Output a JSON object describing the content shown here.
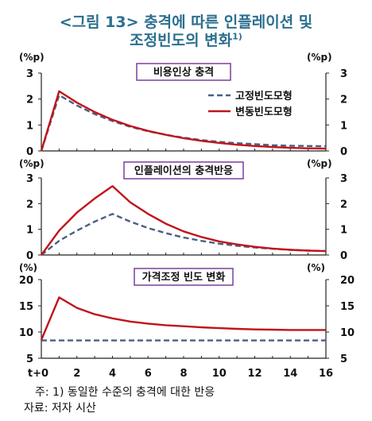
{
  "title": {
    "line1": "<그림 13> 충격에 따른 인플레이션 및",
    "line2": "조정빈도의 변화",
    "line2_sup": "1)"
  },
  "footnote": "주: 1) 동일한 수준의 충격에 대한 반응",
  "source": "자료: 저자 시산",
  "colors": {
    "fixed": "#4a5f80",
    "variable": "#c0141b",
    "panel_border": "#7b3f9e",
    "title": "#2c6f8f"
  },
  "chart_data": [
    {
      "type": "line",
      "title": "비용인상 충격",
      "ylabel_left": "(%p)",
      "ylabel_right": "(%p)",
      "ylim": [
        0,
        3
      ],
      "yticks": [
        "0",
        "1",
        "2",
        "3"
      ],
      "x": [
        0,
        1,
        2,
        3,
        4,
        5,
        6,
        7,
        8,
        9,
        10,
        11,
        12,
        13,
        14,
        15,
        16
      ],
      "legend": "top-right",
      "series": [
        {
          "name": "고정빈도모형",
          "style": "dashed",
          "values": [
            0,
            2.15,
            1.75,
            1.42,
            1.15,
            0.93,
            0.76,
            0.62,
            0.51,
            0.42,
            0.35,
            0.3,
            0.26,
            0.22,
            0.2,
            0.19,
            0.18
          ]
        },
        {
          "name": "변동빈도모형",
          "style": "solid",
          "values": [
            0,
            2.3,
            1.86,
            1.5,
            1.2,
            0.96,
            0.77,
            0.62,
            0.49,
            0.39,
            0.31,
            0.24,
            0.19,
            0.15,
            0.12,
            0.1,
            0.09
          ]
        }
      ]
    },
    {
      "type": "line",
      "title": "인플레이션의 충격반응",
      "ylabel_left": "(%p)",
      "ylabel_right": "(%p)",
      "ylim": [
        0,
        3
      ],
      "yticks": [
        "0",
        "1",
        "2",
        "3"
      ],
      "x": [
        0,
        1,
        2,
        3,
        4,
        5,
        6,
        7,
        8,
        9,
        10,
        11,
        12,
        13,
        14,
        15,
        16
      ],
      "series": [
        {
          "name": "고정빈도모형",
          "style": "dashed",
          "values": [
            0,
            0.55,
            0.95,
            1.3,
            1.6,
            1.3,
            1.05,
            0.85,
            0.68,
            0.55,
            0.44,
            0.36,
            0.29,
            0.24,
            0.2,
            0.17,
            0.15
          ]
        },
        {
          "name": "변동빈도모형",
          "style": "solid",
          "values": [
            0,
            0.95,
            1.65,
            2.2,
            2.68,
            2.05,
            1.6,
            1.22,
            0.92,
            0.7,
            0.53,
            0.41,
            0.32,
            0.25,
            0.2,
            0.17,
            0.15
          ]
        }
      ]
    },
    {
      "type": "line",
      "title": "가격조정 빈도 변화",
      "ylabel_left": "(%)",
      "ylabel_right": "(%)",
      "ylim": [
        5,
        20
      ],
      "yticks": [
        "5",
        "10",
        "15",
        "20"
      ],
      "x": [
        0,
        1,
        2,
        3,
        4,
        5,
        6,
        7,
        8,
        9,
        10,
        11,
        12,
        13,
        14,
        15,
        16
      ],
      "xticks": [
        "t+0",
        "2",
        "4",
        "6",
        "8",
        "10",
        "12",
        "14",
        "16"
      ],
      "series": [
        {
          "name": "고정빈도모형",
          "style": "dashed",
          "values": [
            8.4,
            8.4,
            8.4,
            8.4,
            8.4,
            8.4,
            8.4,
            8.4,
            8.4,
            8.4,
            8.4,
            8.4,
            8.4,
            8.4,
            8.4,
            8.4,
            8.4
          ]
        },
        {
          "name": "변동빈도모형",
          "style": "solid",
          "values": [
            8.5,
            16.6,
            14.6,
            13.4,
            12.6,
            12.0,
            11.6,
            11.3,
            11.1,
            10.9,
            10.75,
            10.6,
            10.5,
            10.45,
            10.4,
            10.4,
            10.4
          ]
        }
      ]
    }
  ]
}
